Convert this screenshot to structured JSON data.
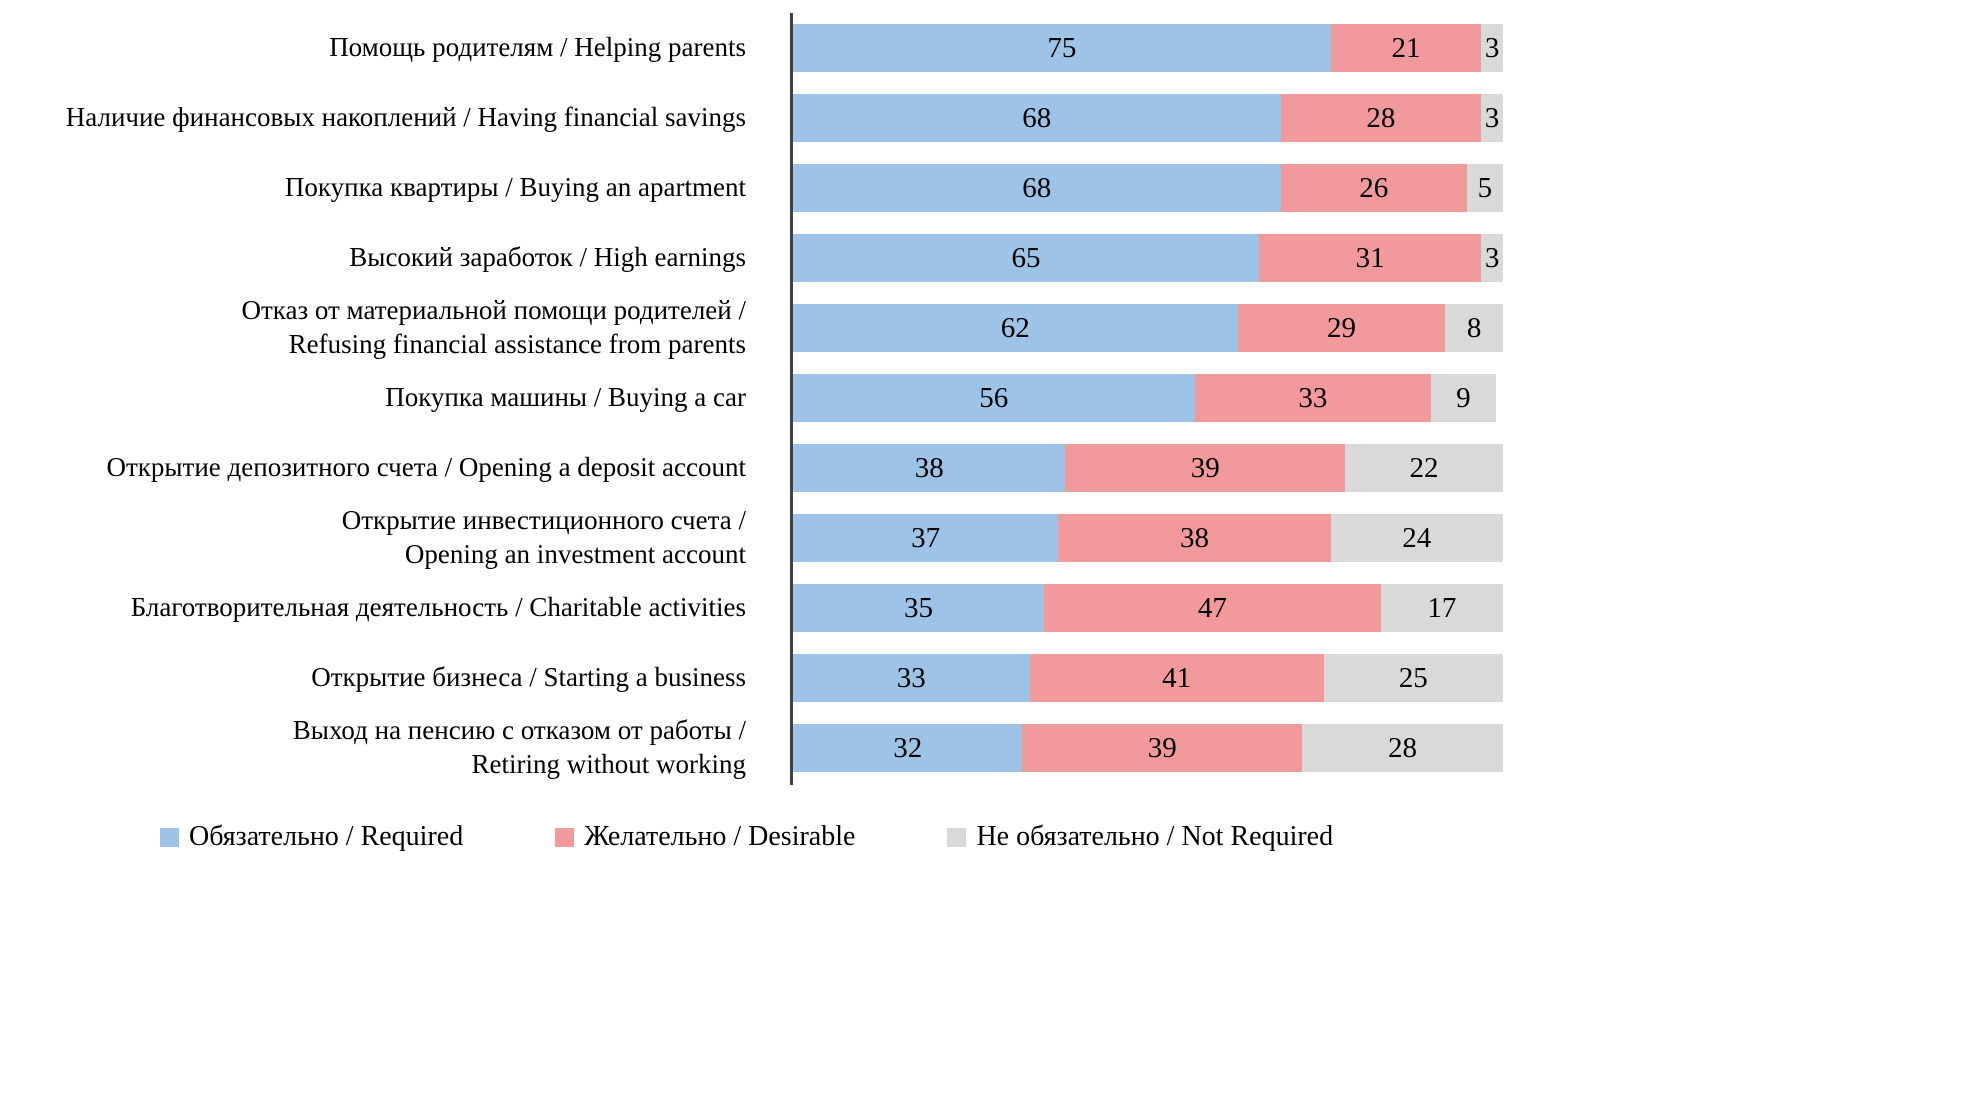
{
  "chart_data": {
    "type": "bar",
    "orientation": "horizontal",
    "stacked": true,
    "axis_max": 100,
    "grid": false,
    "legend_position": "bottom",
    "title": "",
    "categories": [
      "Помощь родителям / Helping parents",
      "Наличие финансовых накоплений / Having financial savings",
      "Покупка квартиры / Buying an apartment",
      "Высокий заработок / High earnings",
      "Отказ от материальной помощи родителей /\nRefusing financial assistance from parents",
      "Покупка машины /  Buying a car",
      "Открытие депозитного счета /  Opening a deposit account",
      "Открытие инвестиционного счета /\nOpening an investment account",
      "Благотворительная деятельность / Charitable activities",
      "Открытие бизнеса /  Starting a business",
      "Выход на пенсию с отказом от работы /\nRetiring without working"
    ],
    "series": [
      {
        "name": "Обязательно / Required",
        "color": "#9DC3E6",
        "values": [
          75,
          68,
          68,
          65,
          62,
          56,
          38,
          37,
          35,
          33,
          32
        ]
      },
      {
        "name": "Желательно / Desirable",
        "color": "#F1999B",
        "values": [
          21,
          28,
          26,
          31,
          29,
          33,
          39,
          38,
          47,
          41,
          39
        ]
      },
      {
        "name": "Не обязательно / Not Required",
        "color": "#D9D9D9",
        "values": [
          3,
          3,
          5,
          3,
          8,
          9,
          22,
          24,
          17,
          25,
          28
        ]
      }
    ]
  }
}
